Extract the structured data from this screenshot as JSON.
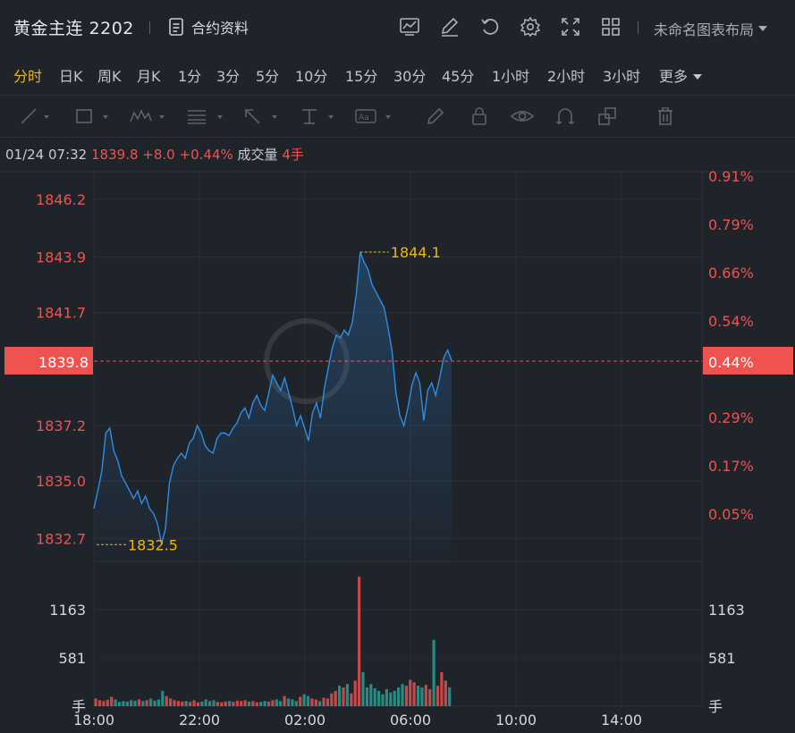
{
  "header": {
    "title": "黄金主连 2202",
    "contract_label": "合约资料",
    "layout_label": "未命名图表布局",
    "icons": [
      "chart-settings-icon",
      "edit-icon",
      "refresh-icon",
      "gear-icon",
      "fullscreen-icon",
      "grid-layout-icon"
    ]
  },
  "periods": [
    {
      "label": "分时",
      "active": true
    },
    {
      "label": "日K"
    },
    {
      "label": "周K"
    },
    {
      "label": "月K"
    },
    {
      "label": "1分"
    },
    {
      "label": "3分"
    },
    {
      "label": "5分"
    },
    {
      "label": "10分"
    },
    {
      "label": "15分"
    },
    {
      "label": "30分"
    },
    {
      "label": "45分"
    },
    {
      "label": "1小时"
    },
    {
      "label": "2小时"
    },
    {
      "label": "3小时"
    },
    {
      "label": "更多"
    }
  ],
  "toolbar_icons": [
    "line-tool-icon",
    "rect-tool-icon",
    "wave-tool-icon",
    "fib-tool-icon",
    "arrow-tool-icon",
    "text-price-tool-icon",
    "text-tool-icon",
    "pen-icon",
    "lock-icon",
    "eye-icon",
    "magnet-icon",
    "clone-icon",
    "trash-icon"
  ],
  "info": {
    "datetime": "01/24 07:32",
    "price": "1839.8",
    "change": "+8.0",
    "change_pct": "+0.44%",
    "volume_label": "成交量",
    "volume": "4手"
  },
  "colors": {
    "up": "#ef5350",
    "down": "#26a69a",
    "line": "#2f8de4",
    "accent": "#f0b90b",
    "bg": "#1f232a"
  },
  "chart_data": {
    "type": "line",
    "x_ticks": [
      "18:00",
      "22:00",
      "02:00",
      "06:00",
      "10:00",
      "14:00"
    ],
    "y_ticks": [
      "1846.2",
      "1843.9",
      "1841.7",
      "1837.2",
      "1835.0",
      "1832.7"
    ],
    "y_ticks_pct": [
      "0.91%",
      "0.79%",
      "0.66%",
      "0.54%",
      "0.29%",
      "0.17%",
      "0.05%"
    ],
    "current_price": "1839.8",
    "current_pct": "0.44%",
    "max_label": "1844.1",
    "min_label": "1832.5",
    "ylim": [
      1831.8,
      1847.3
    ],
    "series": [
      {
        "values": [
          1833.9,
          1834.6,
          1835.4,
          1836.9,
          1837.1,
          1836.2,
          1835.8,
          1835.2,
          1834.9,
          1834.6,
          1834.3,
          1834.6,
          1834.1,
          1834.4,
          1833.9,
          1833.7,
          1833.3,
          1832.5,
          1833.1,
          1834.9,
          1835.6,
          1835.9,
          1836.1,
          1835.9,
          1836.5,
          1836.7,
          1837.2,
          1836.9,
          1836.4,
          1836.2,
          1836.1,
          1836.7,
          1836.9,
          1836.9,
          1836.8,
          1837.1,
          1837.3,
          1837.7,
          1837.9,
          1837.5,
          1838.1,
          1838.4,
          1838.0,
          1837.8,
          1838.5,
          1839.2,
          1838.9,
          1838.6,
          1839.1,
          1838.5,
          1837.9,
          1837.2,
          1837.6,
          1837.1,
          1836.6,
          1837.7,
          1838.1,
          1837.5,
          1838.7,
          1839.5,
          1840.3,
          1840.8,
          1840.7,
          1841.0,
          1840.8,
          1841.3,
          1842.4,
          1844.1,
          1843.7,
          1843.4,
          1842.8,
          1842.5,
          1842.2,
          1841.9,
          1841.1,
          1840.2,
          1838.5,
          1837.6,
          1837.2,
          1837.9,
          1838.8,
          1839.3,
          1838.9,
          1837.4,
          1838.6,
          1838.9,
          1838.4,
          1839.1,
          1839.9,
          1840.2,
          1839.8
        ]
      }
    ],
    "volume": {
      "y_ticks": [
        "1163",
        "581"
      ],
      "unit": "手",
      "values": [
        90,
        70,
        60,
        75,
        110,
        80,
        50,
        60,
        55,
        70,
        65,
        80,
        60,
        70,
        90,
        65,
        80,
        180,
        120,
        90,
        70,
        60,
        55,
        60,
        50,
        70,
        45,
        55,
        80,
        60,
        70,
        50,
        45,
        55,
        60,
        50,
        65,
        60,
        70,
        55,
        60,
        45,
        50,
        60,
        55,
        70,
        80,
        60,
        120,
        90,
        80,
        60,
        110,
        140,
        120,
        90,
        80,
        60,
        100,
        90,
        150,
        180,
        240,
        220,
        260,
        150,
        300,
        1520,
        400,
        220,
        260,
        210,
        180,
        140,
        200,
        160,
        180,
        220,
        260,
        240,
        310,
        280,
        240,
        220,
        250,
        200,
        780,
        240,
        400,
        300,
        220
      ],
      "ylim": [
        0,
        1700
      ]
    }
  }
}
